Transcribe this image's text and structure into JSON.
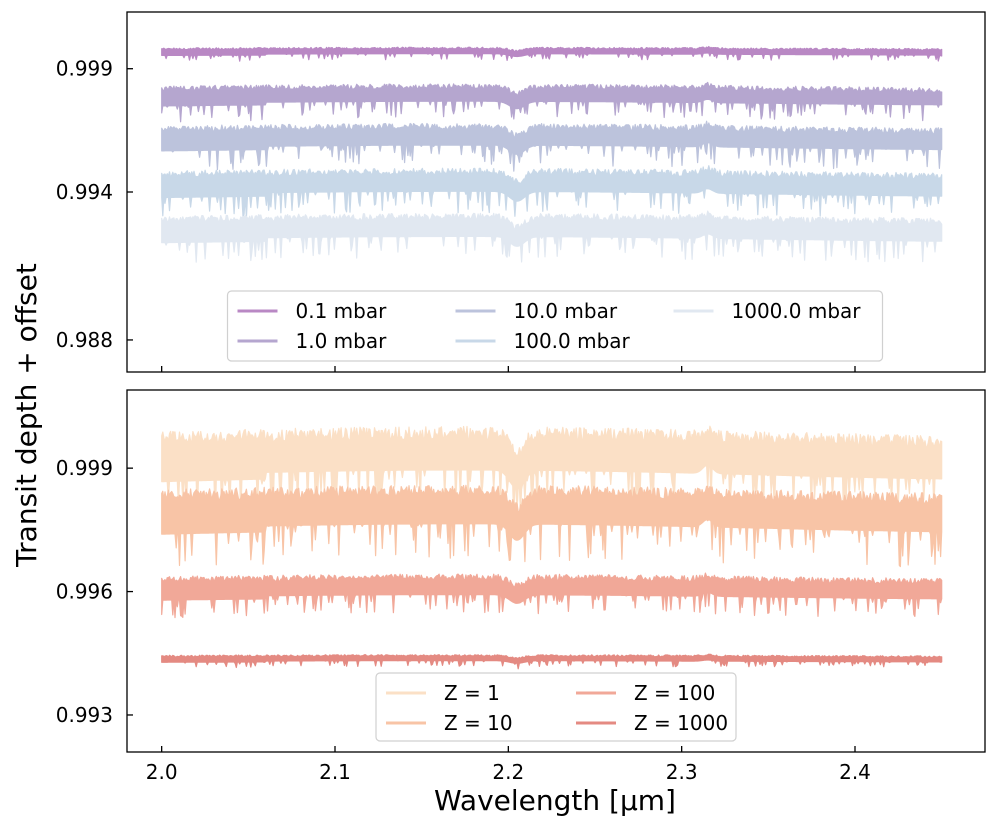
{
  "figure": {
    "ylabel": "Transit depth + offset",
    "xlabel": "Wavelength [μm]"
  },
  "chart_data": [
    {
      "type": "line",
      "panel": "top",
      "title": "",
      "xlim": [
        1.98,
        2.475
      ],
      "ylim": [
        0.9867,
        1.0013
      ],
      "xticks": [
        2.0,
        2.1,
        2.2,
        2.3,
        2.4
      ],
      "xtick_labels_visible": false,
      "yticks": [
        0.999,
        0.994,
        0.988
      ],
      "ytick_labels": [
        "0.999",
        "0.994",
        "0.988"
      ],
      "x_range": [
        2.0,
        2.45
      ],
      "grid": false,
      "legend": {
        "placement": "lower-center",
        "columns": 3
      },
      "series": [
        {
          "name": "0.1 mbar",
          "color": "#b988c4",
          "center": 0.99968,
          "band": 0.00045
        },
        {
          "name": "1.0 mbar",
          "color": "#b5a6cf",
          "center": 0.99787,
          "band": 0.0012
        },
        {
          "name": "10.0 mbar",
          "color": "#bcc3dc",
          "center": 0.99614,
          "band": 0.0015
        },
        {
          "name": "100.0 mbar",
          "color": "#c8d8e8",
          "center": 0.99428,
          "band": 0.0016
        },
        {
          "name": "1000.0 mbar",
          "color": "#e1e8f1",
          "center": 0.99245,
          "band": 0.0016
        }
      ]
    },
    {
      "type": "line",
      "panel": "bottom",
      "title": "",
      "xlim": [
        1.98,
        2.475
      ],
      "ylim": [
        0.9921,
        1.0009
      ],
      "xticks": [
        2.0,
        2.1,
        2.2,
        2.3,
        2.4
      ],
      "xtick_labels": [
        "2.0",
        "2.1",
        "2.2",
        "2.3",
        "2.4"
      ],
      "yticks": [
        0.999,
        0.996,
        0.993
      ],
      "ytick_labels": [
        "0.999",
        "0.996",
        "0.993"
      ],
      "x_range": [
        2.0,
        2.45
      ],
      "grid": false,
      "legend": {
        "placement": "lower-center",
        "columns": 2
      },
      "series": [
        {
          "name": "Z = 1",
          "color": "#fbe0c6",
          "center": 0.99924,
          "band": 0.0018
        },
        {
          "name": "Z = 10",
          "color": "#f8c4a6",
          "center": 0.9979,
          "band": 0.0016
        },
        {
          "name": "Z = 100",
          "color": "#f1a898",
          "center": 0.99606,
          "band": 0.00085
        },
        {
          "name": "Z = 1000",
          "color": "#e48a82",
          "center": 0.99436,
          "band": 0.00025
        }
      ]
    }
  ]
}
